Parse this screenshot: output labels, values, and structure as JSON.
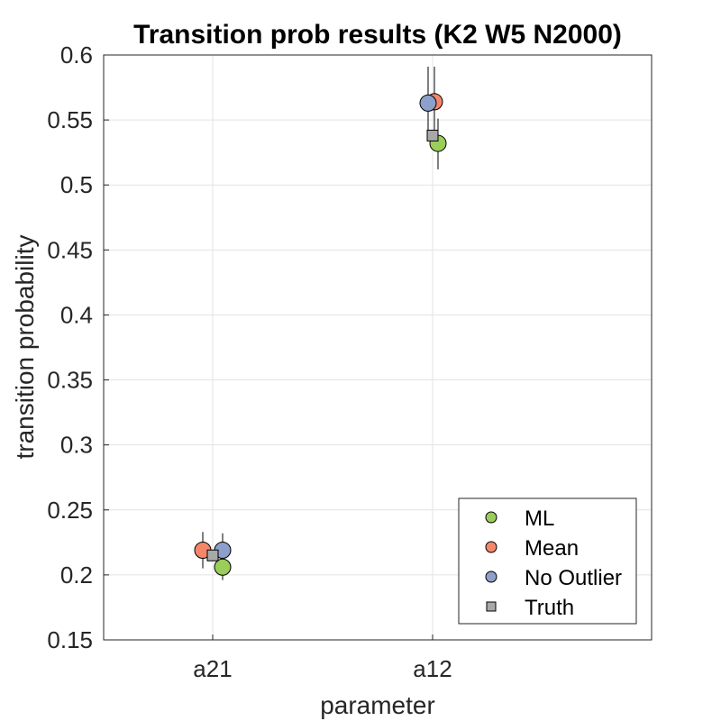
{
  "chart_data": {
    "type": "scatter",
    "title": "Transition prob results (K2 W5 N2000)",
    "xlabel": "parameter",
    "ylabel": "transition probability",
    "categories": [
      "a21",
      "a12"
    ],
    "ylim": [
      0.15,
      0.6
    ],
    "yticks": [
      "0.15",
      "0.2",
      "0.25",
      "0.3",
      "0.35",
      "0.4",
      "0.45",
      "0.5",
      "0.55",
      "0.6"
    ],
    "grid": true,
    "legend_position": "bottom-right",
    "series": [
      {
        "name": "ML",
        "marker": "circle",
        "color": "#9ACD5A",
        "values": [
          0.206,
          0.532
        ],
        "err_low": [
          0.196,
          0.512
        ],
        "err_high": [
          0.218,
          0.551
        ]
      },
      {
        "name": "Mean",
        "marker": "circle",
        "color": "#F4876A",
        "values": [
          0.219,
          0.564
        ],
        "err_low": [
          0.205,
          0.535
        ],
        "err_high": [
          0.233,
          0.591
        ]
      },
      {
        "name": "No Outlier",
        "marker": "circle",
        "color": "#8DA0CB",
        "values": [
          0.219,
          0.563
        ],
        "err_low": [
          0.206,
          0.534
        ],
        "err_high": [
          0.232,
          0.591
        ]
      },
      {
        "name": "Truth",
        "marker": "square",
        "color": "#A8A8A8",
        "values": [
          0.215,
          0.538
        ]
      }
    ]
  }
}
